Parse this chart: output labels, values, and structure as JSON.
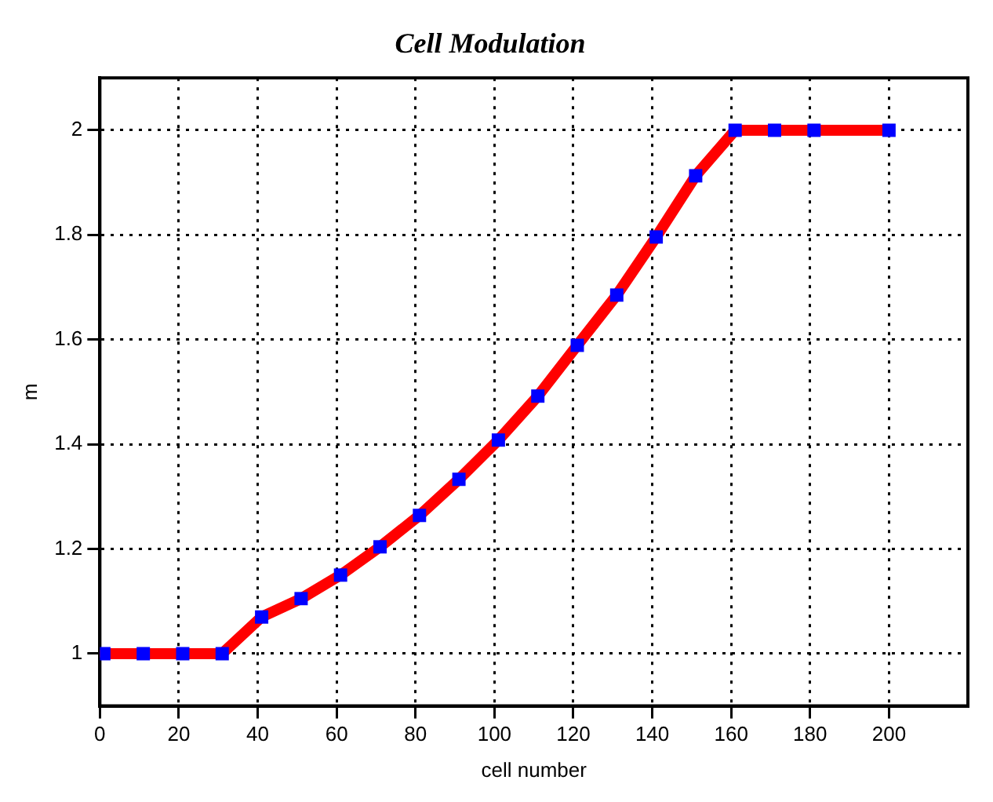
{
  "chart_data": {
    "type": "line",
    "title": "Cell Modulation",
    "xlabel": "cell number",
    "ylabel": "m",
    "x": [
      1,
      11,
      21,
      31,
      41,
      51,
      61,
      71,
      81,
      91,
      101,
      111,
      121,
      131,
      141,
      151,
      161,
      171,
      181,
      200
    ],
    "series": [
      {
        "color": "#ff0000",
        "values": [
          1.0,
          1.0,
          1.0,
          1.0,
          1.07,
          1.105,
          1.15,
          1.204,
          1.264,
          1.333,
          1.408,
          1.492,
          1.589,
          1.685,
          1.796,
          1.913,
          2.0,
          2.0,
          2.0,
          2.0
        ]
      }
    ],
    "xlim": [
      0,
      220
    ],
    "xticks": [
      0,
      20,
      40,
      60,
      80,
      100,
      120,
      140,
      160,
      180,
      200
    ],
    "ylim": [
      0.9,
      2.1
    ],
    "yticks": [
      1,
      1.2,
      1.4,
      1.6,
      1.8,
      2
    ],
    "grid": true,
    "legend": false,
    "marker": "square",
    "line_style": "solid"
  }
}
